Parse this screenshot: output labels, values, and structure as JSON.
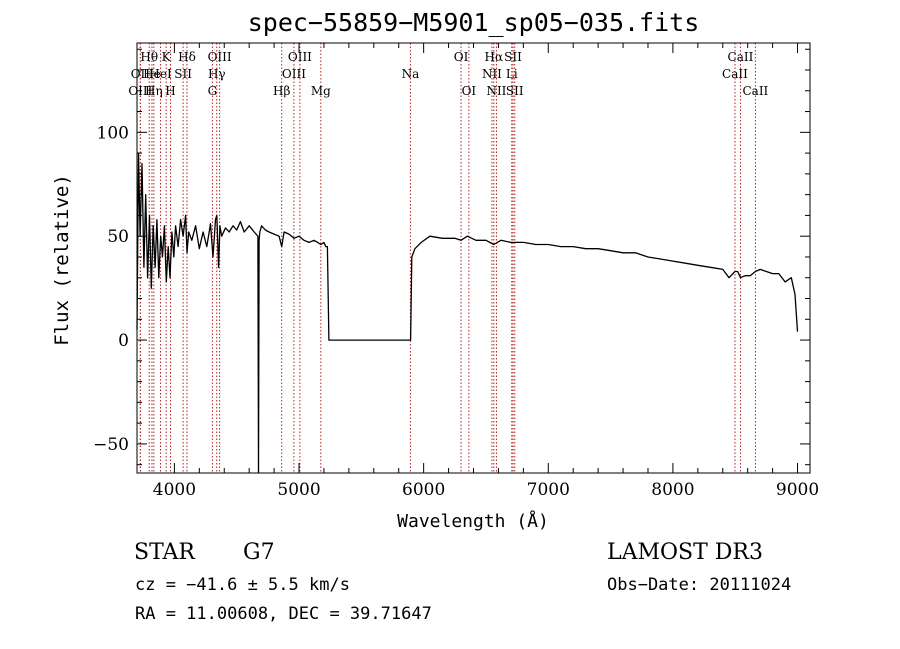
{
  "title": "spec−55859−M5901_sp05−035.fits",
  "info": {
    "class": "STAR",
    "subclass": "G7",
    "cz": "cz = −41.6 ± 5.5 km/s",
    "radec": "RA =  11.00608, DEC =  39.71647",
    "survey": "LAMOST DR3",
    "obsdate": "Obs−Date: 20111024"
  },
  "chart_data": {
    "type": "line",
    "title": "spec−55859−M5901_sp05−035.fits",
    "xlabel": "Wavelength (Å)",
    "ylabel": "Flux (relative)",
    "xlim": [
      3700,
      9100
    ],
    "ylim": [
      -64,
      143
    ],
    "xticks": [
      4000,
      5000,
      6000,
      7000,
      8000,
      9000
    ],
    "xtick_labels": [
      "4000",
      "5000",
      "6000",
      "7000",
      "8000",
      "9000"
    ],
    "yticks": [
      -50,
      0,
      50,
      100
    ],
    "ytick_labels": [
      "−50",
      "0",
      "50",
      "100"
    ],
    "line_color": "#000000",
    "marker_color": "#b22222",
    "series": [
      {
        "x": [
          3700,
          3712,
          3725,
          3740,
          3755,
          3770,
          3785,
          3800,
          3815,
          3830,
          3845,
          3860,
          3875,
          3890,
          3905,
          3920,
          3935,
          3950,
          3965,
          3980,
          3995,
          4010,
          4030,
          4050,
          4070,
          4090,
          4101,
          4115,
          4140,
          4170,
          4200,
          4230,
          4260,
          4290,
          4310,
          4330,
          4340,
          4355,
          4365,
          4380,
          4410,
          4440,
          4470,
          4500,
          4530,
          4560,
          4600,
          4640,
          4670,
          4675,
          4680,
          4685,
          4700,
          4730,
          4760,
          4800,
          4840,
          4861,
          4880,
          4920,
          4960,
          5000,
          5040,
          5080,
          5120,
          5150,
          5175,
          5200,
          5215,
          5228,
          5240,
          5300,
          5500,
          5700,
          5870,
          5895,
          5905,
          5930,
          5980,
          6050,
          6150,
          6250,
          6300,
          6350,
          6420,
          6500,
          6563,
          6620,
          6700,
          6800,
          6900,
          7000,
          7100,
          7200,
          7300,
          7400,
          7500,
          7600,
          7700,
          7800,
          7900,
          8000,
          8100,
          8200,
          8300,
          8400,
          8450,
          8498,
          8520,
          8542,
          8580,
          8620,
          8662,
          8700,
          8750,
          8800,
          8850,
          8900,
          8950,
          8980,
          9000
        ],
        "y": [
          5,
          90,
          50,
          85,
          35,
          70,
          30,
          60,
          25,
          55,
          35,
          58,
          30,
          50,
          40,
          55,
          28,
          45,
          30,
          52,
          40,
          55,
          45,
          58,
          50,
          60,
          42,
          52,
          48,
          55,
          44,
          52,
          45,
          56,
          40,
          58,
          60,
          35,
          55,
          50,
          54,
          52,
          55,
          53,
          57,
          52,
          55,
          52,
          50,
          -65,
          48,
          52,
          55,
          53,
          52,
          51,
          50,
          45,
          52,
          51,
          49,
          50,
          48,
          47,
          48,
          47,
          46,
          47,
          45,
          45,
          0,
          0,
          0,
          0,
          0,
          0,
          40,
          44,
          47,
          50,
          49,
          49,
          48,
          50,
          48,
          48,
          46,
          48,
          47,
          47,
          46,
          46,
          45,
          45,
          44,
          44,
          43,
          42,
          42,
          40,
          39,
          38,
          37,
          36,
          35,
          34,
          30,
          33,
          33,
          30,
          31,
          31,
          33,
          34,
          33,
          32,
          32,
          28,
          30,
          22,
          4
        ]
      }
    ],
    "lines": [
      {
        "label": "Hθ",
        "x": 3798,
        "row": 0
      },
      {
        "label": "OII",
        "x": 3727,
        "row": 1
      },
      {
        "label": "OIII",
        "x": 3727,
        "row": 2
      },
      {
        "label": "He",
        "x": 3820,
        "row": 1
      },
      {
        "label": "Hη",
        "x": 3835,
        "row": 2
      },
      {
        "label": "K",
        "x": 3934,
        "row": 0
      },
      {
        "label": "HeI",
        "x": 3889,
        "row": 1
      },
      {
        "label": "H",
        "x": 3969,
        "row": 2
      },
      {
        "label": "SII",
        "x": 4070,
        "row": 1
      },
      {
        "label": "Hδ",
        "x": 4101,
        "row": 0
      },
      {
        "label": "OIII",
        "x": 4363,
        "row": 0
      },
      {
        "label": "Hγ",
        "x": 4340,
        "row": 1
      },
      {
        "label": "G",
        "x": 4305,
        "row": 2
      },
      {
        "label": "Hβ",
        "x": 4861,
        "row": 2
      },
      {
        "label": "OIII",
        "x": 4959,
        "row": 1
      },
      {
        "label": "OIII",
        "x": 5007,
        "row": 0
      },
      {
        "label": "Mg",
        "x": 5175,
        "row": 2
      },
      {
        "label": "Na",
        "x": 5894,
        "row": 1
      },
      {
        "label": "OI",
        "x": 6300,
        "row": 0
      },
      {
        "label": "OI",
        "x": 6363,
        "row": 2
      },
      {
        "label": "Hα",
        "x": 6563,
        "row": 0
      },
      {
        "label": "NII",
        "x": 6548,
        "row": 1
      },
      {
        "label": "NII",
        "x": 6584,
        "row": 2
      },
      {
        "label": "SII",
        "x": 6717,
        "row": 0
      },
      {
        "label": "Li",
        "x": 6707,
        "row": 1
      },
      {
        "label": "SII",
        "x": 6731,
        "row": 2
      },
      {
        "label": "CaII",
        "x": 8498,
        "row": 1
      },
      {
        "label": "CaII",
        "x": 8542,
        "row": 0
      },
      {
        "label": "CaII",
        "x": 8662,
        "row": 2
      }
    ]
  }
}
